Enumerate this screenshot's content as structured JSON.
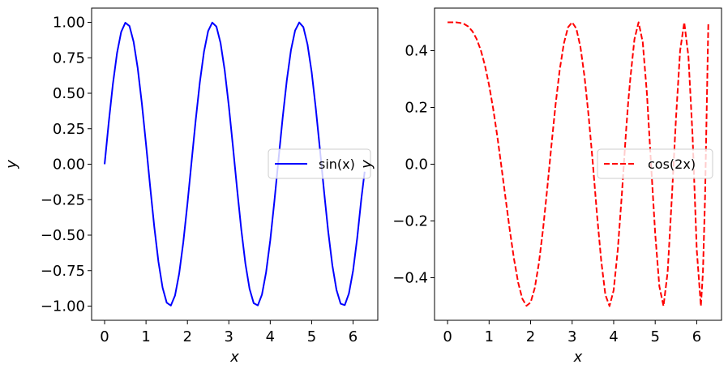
{
  "chart_data": [
    {
      "type": "line",
      "xlabel": "x",
      "ylabel": "y",
      "xlim": [
        -0.314,
        6.597
      ],
      "ylim": [
        -1.1,
        1.1
      ],
      "xticks": [
        0,
        1,
        2,
        3,
        4,
        5,
        6
      ],
      "xtick_labels": [
        "0",
        "1",
        "2",
        "3",
        "4",
        "5",
        "6"
      ],
      "yticks": [
        -1.0,
        -0.75,
        -0.5,
        -0.25,
        0.0,
        0.25,
        0.5,
        0.75,
        1.0
      ],
      "ytick_labels": [
        "−1.00",
        "−0.75",
        "−0.50",
        "−0.25",
        "0.00",
        "0.25",
        "0.50",
        "0.75",
        "1.00"
      ],
      "legend_position": "center-right",
      "series": [
        {
          "name": "sin(x)",
          "color": "#0000ff",
          "linestyle": "solid",
          "x": [
            0.0,
            0.1,
            0.2,
            0.3,
            0.4,
            0.5,
            0.6,
            0.7,
            0.8,
            0.9,
            1.0,
            1.1,
            1.2,
            1.3,
            1.4,
            1.5,
            1.6,
            1.7,
            1.8,
            1.9,
            2.0,
            2.1,
            2.2,
            2.3,
            2.4,
            2.5,
            2.6,
            2.7,
            2.8,
            2.9,
            3.0,
            3.1,
            3.2,
            3.3,
            3.4,
            3.5,
            3.6,
            3.7,
            3.8,
            3.9,
            4.0,
            4.1,
            4.2,
            4.3,
            4.4,
            4.5,
            4.6,
            4.7,
            4.8,
            4.9,
            5.0,
            5.1,
            5.2,
            5.3,
            5.4,
            5.5,
            5.6,
            5.7,
            5.8,
            5.9,
            6.0,
            6.1,
            6.2,
            6.28
          ],
          "y": [
            0.0,
            0.295,
            0.565,
            0.783,
            0.932,
            0.997,
            0.974,
            0.863,
            0.676,
            0.427,
            0.141,
            -0.158,
            -0.443,
            -0.688,
            -0.87,
            -0.976,
            -0.996,
            -0.926,
            -0.772,
            -0.55,
            -0.279,
            0.018,
            0.311,
            0.578,
            0.793,
            0.938,
            0.998,
            0.97,
            0.854,
            0.662,
            0.41,
            0.122,
            -0.176,
            -0.459,
            -0.7,
            -0.878,
            -0.979,
            -0.995,
            -0.919,
            -0.761,
            -0.537,
            -0.261,
            0.035,
            0.327,
            0.591,
            0.803,
            0.942,
            0.999,
            0.966,
            0.844,
            0.65,
            0.393,
            0.105,
            -0.193,
            -0.475,
            -0.713,
            -0.886,
            -0.983,
            -0.993,
            -0.911,
            -0.751,
            -0.521,
            -0.244,
            -0.053
          ]
        }
      ]
    },
    {
      "type": "line",
      "xlabel": "x",
      "ylabel": "y",
      "xlim": [
        -0.314,
        6.597
      ],
      "ylim": [
        -0.55,
        0.55
      ],
      "xticks": [
        0,
        1,
        2,
        3,
        4,
        5,
        6
      ],
      "xtick_labels": [
        "0",
        "1",
        "2",
        "3",
        "4",
        "5",
        "6"
      ],
      "yticks": [
        -0.4,
        -0.2,
        0.0,
        0.2,
        0.4
      ],
      "ytick_labels": [
        "−0.4",
        "−0.2",
        "0.0",
        "0.2",
        "0.4"
      ],
      "legend_position": "center-right",
      "series": [
        {
          "name": "cos(2x)",
          "color": "#ff0000",
          "linestyle": "dashed",
          "x": [
            0.0,
            0.1,
            0.2,
            0.3,
            0.4,
            0.5,
            0.6,
            0.7,
            0.8,
            0.9,
            1.0,
            1.1,
            1.2,
            1.3,
            1.4,
            1.5,
            1.6,
            1.7,
            1.8,
            1.9,
            2.0,
            2.1,
            2.2,
            2.3,
            2.4,
            2.5,
            2.6,
            2.7,
            2.8,
            2.9,
            3.0,
            3.1,
            3.2,
            3.3,
            3.4,
            3.5,
            3.55,
            3.6,
            3.7,
            3.8,
            3.9,
            4.0,
            4.1,
            4.2,
            4.3,
            4.35,
            4.4,
            4.5,
            4.6,
            4.7,
            4.8,
            4.9,
            5.0,
            5.1,
            5.2,
            5.3,
            5.4,
            5.5,
            5.6,
            5.7,
            5.8,
            5.9,
            6.0,
            6.1,
            6.15,
            6.2,
            6.28
          ],
          "y": [
            0.5,
            0.5,
            0.5,
            0.498,
            0.494,
            0.485,
            0.468,
            0.441,
            0.402,
            0.348,
            0.278,
            0.194,
            0.096,
            -0.012,
            -0.124,
            -0.234,
            -0.334,
            -0.417,
            -0.474,
            -0.499,
            -0.487,
            -0.436,
            -0.348,
            -0.228,
            -0.086,
            0.065,
            0.209,
            0.332,
            0.425,
            0.482,
            0.5,
            0.478,
            0.413,
            0.306,
            0.165,
            0.0,
            -0.09,
            -0.18,
            -0.34,
            -0.46,
            -0.5,
            -0.444,
            -0.3,
            -0.1,
            0.12,
            0.218,
            0.3,
            0.44,
            0.5,
            0.43,
            0.25,
            0.0,
            -0.245,
            -0.43,
            -0.5,
            -0.38,
            -0.12,
            0.16,
            0.4,
            0.5,
            0.38,
            0.1,
            -0.3,
            -0.5,
            -0.38,
            -0.12,
            0.5
          ]
        }
      ]
    }
  ]
}
